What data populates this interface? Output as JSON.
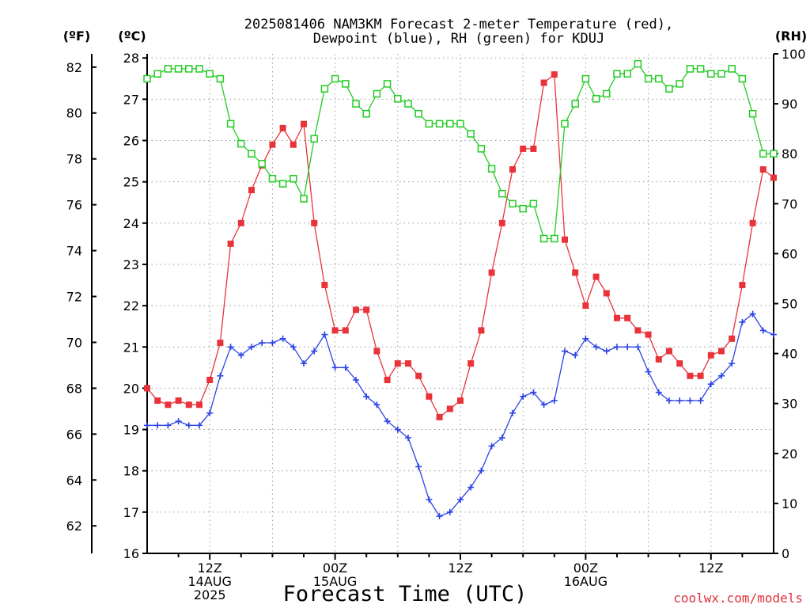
{
  "chart_data": {
    "type": "line",
    "title_lines": [
      "2025081406 NAM3KM Forecast 2-meter Temperature (red),",
      "Dewpoint (blue), RH (green) for KDUJ"
    ],
    "xlabel": "Forecast Time (UTC)",
    "credit": "coolwx.com/models",
    "units": {
      "fahrenheit": "(ºF)",
      "celsius": "(ºC)",
      "rh": "(RH)"
    },
    "grid": true,
    "celsius_axis": {
      "ylim": [
        16,
        28.1
      ],
      "ticks": [
        "16",
        "17",
        "18",
        "19",
        "20",
        "21",
        "22",
        "23",
        "24",
        "25",
        "26",
        "27",
        "28"
      ]
    },
    "fahrenheit_axis": {
      "ticks": [
        "62",
        "64",
        "66",
        "68",
        "70",
        "72",
        "74",
        "76",
        "78",
        "80",
        "82"
      ]
    },
    "rh_axis": {
      "ylim": [
        0,
        100
      ],
      "ticks": [
        "0",
        "10",
        "20",
        "30",
        "40",
        "50",
        "60",
        "70",
        "80",
        "90",
        "100"
      ]
    },
    "x_hours_range": [
      6,
      66
    ],
    "x_ticks": [
      {
        "hour": 12,
        "lines": [
          "12Z",
          "14AUG",
          "2025"
        ]
      },
      {
        "hour": 24,
        "lines": [
          "00Z",
          "15AUG"
        ]
      },
      {
        "hour": 36,
        "lines": [
          "12Z"
        ]
      },
      {
        "hour": 48,
        "lines": [
          "00Z",
          "16AUG"
        ]
      },
      {
        "hour": 60,
        "lines": [
          "12Z"
        ]
      }
    ],
    "series": [
      {
        "key": "temperature",
        "color": "#e8333a",
        "axis": "celsius",
        "marker": "filled-square",
        "points": [
          [
            6,
            20.0
          ],
          [
            7,
            19.7
          ],
          [
            8,
            19.6
          ],
          [
            9,
            19.7
          ],
          [
            10,
            19.6
          ],
          [
            11,
            19.6
          ],
          [
            12,
            20.2
          ],
          [
            13,
            21.1
          ],
          [
            14,
            23.5
          ],
          [
            15,
            24.0
          ],
          [
            16,
            24.8
          ],
          [
            17,
            25.4
          ],
          [
            18,
            25.9
          ],
          [
            19,
            26.3
          ],
          [
            20,
            25.9
          ],
          [
            21,
            26.4
          ],
          [
            22,
            24.0
          ],
          [
            23,
            22.5
          ],
          [
            24,
            21.4
          ],
          [
            25,
            21.4
          ],
          [
            26,
            21.9
          ],
          [
            27,
            21.9
          ],
          [
            28,
            20.9
          ],
          [
            29,
            20.2
          ],
          [
            30,
            20.6
          ],
          [
            31,
            20.6
          ],
          [
            32,
            20.3
          ],
          [
            33,
            19.8
          ],
          [
            34,
            19.3
          ],
          [
            35,
            19.5
          ],
          [
            36,
            19.7
          ],
          [
            37,
            20.6
          ],
          [
            38,
            21.4
          ],
          [
            39,
            22.8
          ],
          [
            40,
            24.0
          ],
          [
            41,
            25.3
          ],
          [
            42,
            25.8
          ],
          [
            43,
            25.8
          ],
          [
            44,
            27.4
          ],
          [
            45,
            27.6
          ],
          [
            46,
            23.6
          ],
          [
            47,
            22.8
          ],
          [
            48,
            22.0
          ],
          [
            49,
            22.7
          ],
          [
            50,
            22.3
          ],
          [
            51,
            21.7
          ],
          [
            52,
            21.7
          ],
          [
            53,
            21.4
          ],
          [
            54,
            21.3
          ],
          [
            55,
            20.7
          ],
          [
            56,
            20.9
          ],
          [
            57,
            20.6
          ],
          [
            58,
            20.3
          ],
          [
            59,
            20.3
          ],
          [
            60,
            20.8
          ],
          [
            61,
            20.9
          ],
          [
            62,
            21.2
          ],
          [
            63,
            22.5
          ],
          [
            64,
            24.0
          ],
          [
            65,
            25.3
          ],
          [
            66,
            25.1
          ]
        ]
      },
      {
        "key": "dewpoint",
        "color": "#2b43e6",
        "axis": "celsius",
        "marker": "plus",
        "points": [
          [
            6,
            19.1
          ],
          [
            7,
            19.1
          ],
          [
            8,
            19.1
          ],
          [
            9,
            19.2
          ],
          [
            10,
            19.1
          ],
          [
            11,
            19.1
          ],
          [
            12,
            19.4
          ],
          [
            13,
            20.3
          ],
          [
            14,
            21.0
          ],
          [
            15,
            20.8
          ],
          [
            16,
            21.0
          ],
          [
            17,
            21.1
          ],
          [
            18,
            21.1
          ],
          [
            19,
            21.2
          ],
          [
            20,
            21.0
          ],
          [
            21,
            20.6
          ],
          [
            22,
            20.9
          ],
          [
            23,
            21.3
          ],
          [
            24,
            20.5
          ],
          [
            25,
            20.5
          ],
          [
            26,
            20.2
          ],
          [
            27,
            19.8
          ],
          [
            28,
            19.6
          ],
          [
            29,
            19.2
          ],
          [
            30,
            19.0
          ],
          [
            31,
            18.8
          ],
          [
            32,
            18.1
          ],
          [
            33,
            17.3
          ],
          [
            34,
            16.9
          ],
          [
            35,
            17.0
          ],
          [
            36,
            17.3
          ],
          [
            37,
            17.6
          ],
          [
            38,
            18.0
          ],
          [
            39,
            18.6
          ],
          [
            40,
            18.8
          ],
          [
            41,
            19.4
          ],
          [
            42,
            19.8
          ],
          [
            43,
            19.9
          ],
          [
            44,
            19.6
          ],
          [
            45,
            19.7
          ],
          [
            46,
            20.9
          ],
          [
            47,
            20.8
          ],
          [
            48,
            21.2
          ],
          [
            49,
            21.0
          ],
          [
            50,
            20.9
          ],
          [
            51,
            21.0
          ],
          [
            52,
            21.0
          ],
          [
            53,
            21.0
          ],
          [
            54,
            20.4
          ],
          [
            55,
            19.9
          ],
          [
            56,
            19.7
          ],
          [
            57,
            19.7
          ],
          [
            58,
            19.7
          ],
          [
            59,
            19.7
          ],
          [
            60,
            20.1
          ],
          [
            61,
            20.3
          ],
          [
            62,
            20.6
          ],
          [
            63,
            21.6
          ],
          [
            64,
            21.8
          ],
          [
            65,
            21.4
          ],
          [
            66,
            21.3
          ]
        ]
      },
      {
        "key": "rh",
        "color": "#22cc22",
        "axis": "rh",
        "marker": "open-square",
        "points": [
          [
            6,
            95
          ],
          [
            7,
            96
          ],
          [
            8,
            97
          ],
          [
            9,
            97
          ],
          [
            10,
            97
          ],
          [
            11,
            97
          ],
          [
            12,
            96
          ],
          [
            13,
            95
          ],
          [
            14,
            86
          ],
          [
            15,
            82
          ],
          [
            16,
            80
          ],
          [
            17,
            78
          ],
          [
            18,
            75
          ],
          [
            19,
            74
          ],
          [
            20,
            75
          ],
          [
            21,
            71
          ],
          [
            22,
            83
          ],
          [
            23,
            93
          ],
          [
            24,
            95
          ],
          [
            25,
            94
          ],
          [
            26,
            90
          ],
          [
            27,
            88
          ],
          [
            28,
            92
          ],
          [
            29,
            94
          ],
          [
            30,
            91
          ],
          [
            31,
            90
          ],
          [
            32,
            88
          ],
          [
            33,
            86
          ],
          [
            34,
            86
          ],
          [
            35,
            86
          ],
          [
            36,
            86
          ],
          [
            37,
            84
          ],
          [
            38,
            81
          ],
          [
            39,
            77
          ],
          [
            40,
            72
          ],
          [
            41,
            70
          ],
          [
            42,
            69
          ],
          [
            43,
            70
          ],
          [
            44,
            63
          ],
          [
            45,
            63
          ],
          [
            46,
            86
          ],
          [
            47,
            90
          ],
          [
            48,
            95
          ],
          [
            49,
            91
          ],
          [
            50,
            92
          ],
          [
            51,
            96
          ],
          [
            52,
            96
          ],
          [
            53,
            98
          ],
          [
            54,
            95
          ],
          [
            55,
            95
          ],
          [
            56,
            93
          ],
          [
            57,
            94
          ],
          [
            58,
            97
          ],
          [
            59,
            97
          ],
          [
            60,
            96
          ],
          [
            61,
            96
          ],
          [
            62,
            97
          ],
          [
            63,
            95
          ],
          [
            64,
            88
          ],
          [
            65,
            80
          ],
          [
            66,
            80
          ]
        ]
      }
    ]
  }
}
